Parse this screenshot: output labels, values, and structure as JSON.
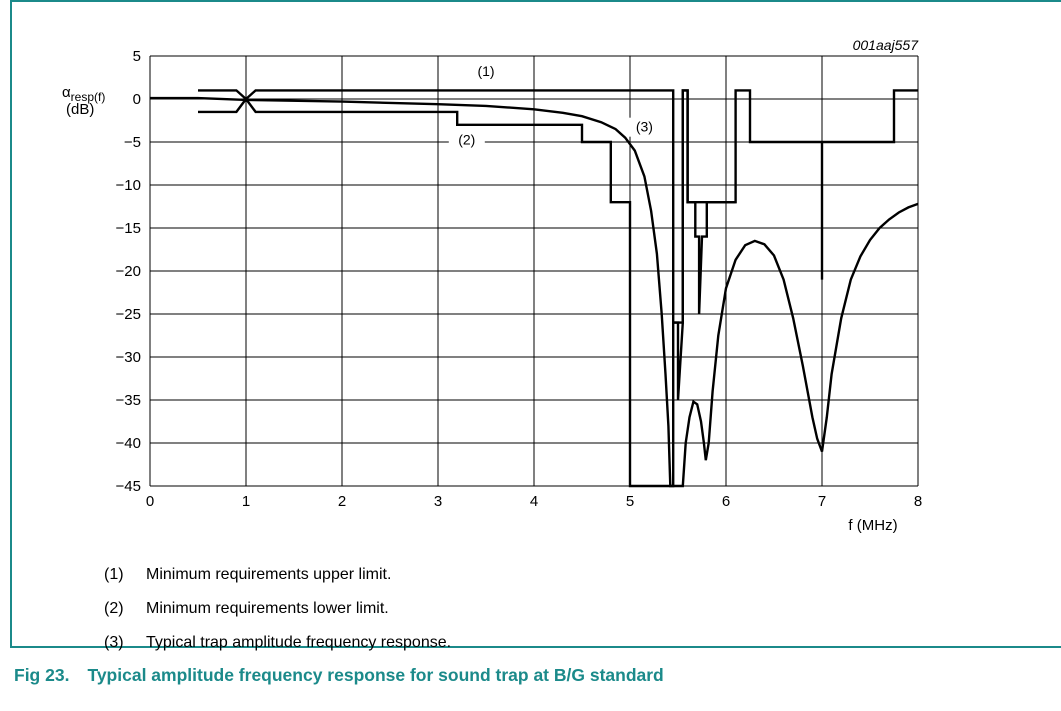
{
  "figure_id": "001aaj557",
  "ylabel_main": "α",
  "ylabel_sub": "resp(f)",
  "ylabel_unit": "(dB)",
  "xlabel": "f (MHz)",
  "notes": [
    {
      "num": "(1)",
      "text": "Minimum requirements upper limit."
    },
    {
      "num": "(2)",
      "text": "Minimum requirements lower limit."
    },
    {
      "num": "(3)",
      "text": "Typical trap amplitude frequency response."
    }
  ],
  "caption": {
    "label": "Fig 23.",
    "text": "Typical amplitude frequency response for sound trap at B/G standard"
  },
  "colors": {
    "frame": "#1b8a8a",
    "caption": "#1b8a8a",
    "grid": "#000000",
    "curve": "#000000"
  },
  "chart_data": {
    "type": "line",
    "xlim": [
      0,
      8
    ],
    "ylim": [
      -45,
      5
    ],
    "xticks": [
      0,
      1,
      2,
      3,
      4,
      5,
      6,
      7,
      8
    ],
    "yticks": [
      5,
      0,
      -5,
      -10,
      -15,
      -20,
      -25,
      -30,
      -35,
      -40,
      -45
    ],
    "xtick_labels": [
      "0",
      "1",
      "2",
      "3",
      "4",
      "5",
      "6",
      "7",
      "8"
    ],
    "ytick_labels": [
      "5",
      "0",
      "−5",
      "−10",
      "−15",
      "−20",
      "−25",
      "−30",
      "−35",
      "−40",
      "−45"
    ],
    "grid": true,
    "series": [
      {
        "name": "(1)",
        "x": [
          0.5,
          0.9,
          1.0,
          1.1,
          5.45,
          5.45,
          5.5,
          5.5,
          5.55,
          5.55,
          5.6,
          5.6,
          6.1,
          6.1,
          6.25,
          6.25,
          7.0,
          7.0,
          7.0,
          7.75,
          7.75,
          8.0
        ],
        "y": [
          1,
          1,
          0,
          1,
          1,
          -26,
          -26,
          -35,
          -26,
          1,
          1,
          -12,
          -12,
          1,
          1,
          -5,
          -5,
          -21,
          -5,
          -5,
          1,
          1
        ]
      },
      {
        "name": "(2)",
        "x": [
          0.5,
          0.9,
          1.0,
          1.1,
          3.2,
          3.2,
          4.5,
          4.5,
          4.8,
          4.8,
          5.0,
          5.0,
          5.45,
          5.45,
          5.55,
          5.55,
          5.6,
          5.6,
          5.68,
          5.68,
          5.72,
          5.72,
          5.75,
          5.75,
          5.8,
          5.8,
          6.1
        ],
        "y": [
          -1.5,
          -1.5,
          0,
          -1.5,
          -1.5,
          -3,
          -3,
          -5,
          -5,
          -12,
          -12,
          -45,
          -45,
          -26,
          -26,
          1,
          1,
          -12,
          -12,
          -16,
          -16,
          -25,
          -16,
          -16,
          -16,
          -12,
          -12
        ]
      },
      {
        "name": "(3)",
        "x": [
          0.0,
          0.5,
          1.0,
          2.0,
          3.0,
          3.5,
          4.0,
          4.3,
          4.5,
          4.7,
          4.85,
          4.95,
          5.05,
          5.15,
          5.22,
          5.28,
          5.33,
          5.37,
          5.4,
          5.42,
          5.55,
          5.58,
          5.62,
          5.66,
          5.7,
          5.74,
          5.77,
          5.79,
          5.82,
          5.86,
          5.92,
          6.0,
          6.1,
          6.2,
          6.3,
          6.4,
          6.5,
          6.6,
          6.7,
          6.8,
          6.9,
          6.95,
          7.0,
          7.05,
          7.1,
          7.2,
          7.3,
          7.4,
          7.5,
          7.6,
          7.7,
          7.8,
          7.9,
          8.0
        ],
        "y": [
          0.1,
          0.1,
          -0.1,
          -0.3,
          -0.6,
          -0.8,
          -1.2,
          -1.6,
          -2.0,
          -2.7,
          -3.5,
          -4.5,
          -6.0,
          -9.0,
          -13.0,
          -18.0,
          -25.0,
          -32.0,
          -38.0,
          -45.0,
          -45.0,
          -40.0,
          -37.0,
          -35.2,
          -35.5,
          -37.5,
          -40.0,
          -42.0,
          -40.0,
          -34.0,
          -27.5,
          -22.0,
          -18.7,
          -17.0,
          -16.5,
          -16.9,
          -18.2,
          -21.0,
          -25.5,
          -31.0,
          -37.0,
          -39.5,
          -41.0,
          -37.0,
          -32.0,
          -25.5,
          -21.0,
          -18.3,
          -16.4,
          -15.0,
          -14.0,
          -13.2,
          -12.6,
          -12.2
        ]
      }
    ],
    "annotations": [
      {
        "text": "(1)",
        "x": 3.5,
        "y": 2.7
      },
      {
        "text": "(2)",
        "x": 3.3,
        "y": -5.3
      },
      {
        "text": "(3)",
        "x": 5.15,
        "y": -3.8
      }
    ]
  }
}
